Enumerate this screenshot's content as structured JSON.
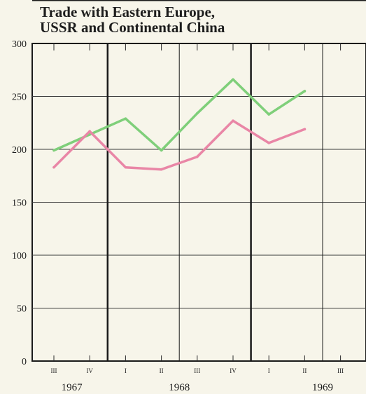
{
  "chart_data": {
    "type": "line",
    "title_lines": [
      "Trade with Eastern Europe,",
      "USSR and Continental China"
    ],
    "x": [
      "III",
      "IV",
      "I",
      "II",
      "III",
      "IV",
      "I",
      "II",
      "III"
    ],
    "years": [
      {
        "label": "1967",
        "quarter_index": 0.5
      },
      {
        "label": "1968",
        "quarter_index": 3.5
      },
      {
        "label": "1969",
        "quarter_index": 7.5
      }
    ],
    "ylim": [
      0,
      300
    ],
    "yticks": [
      0,
      50,
      100,
      150,
      200,
      250,
      300
    ],
    "grid": true,
    "series": [
      {
        "color": "#7fcf7a",
        "values": [
          199,
          214,
          229,
          199,
          234,
          266,
          233,
          255,
          null
        ]
      },
      {
        "color": "#e986a6",
        "values": [
          183,
          217,
          183,
          181,
          193,
          227,
          206,
          219,
          null
        ]
      }
    ]
  }
}
